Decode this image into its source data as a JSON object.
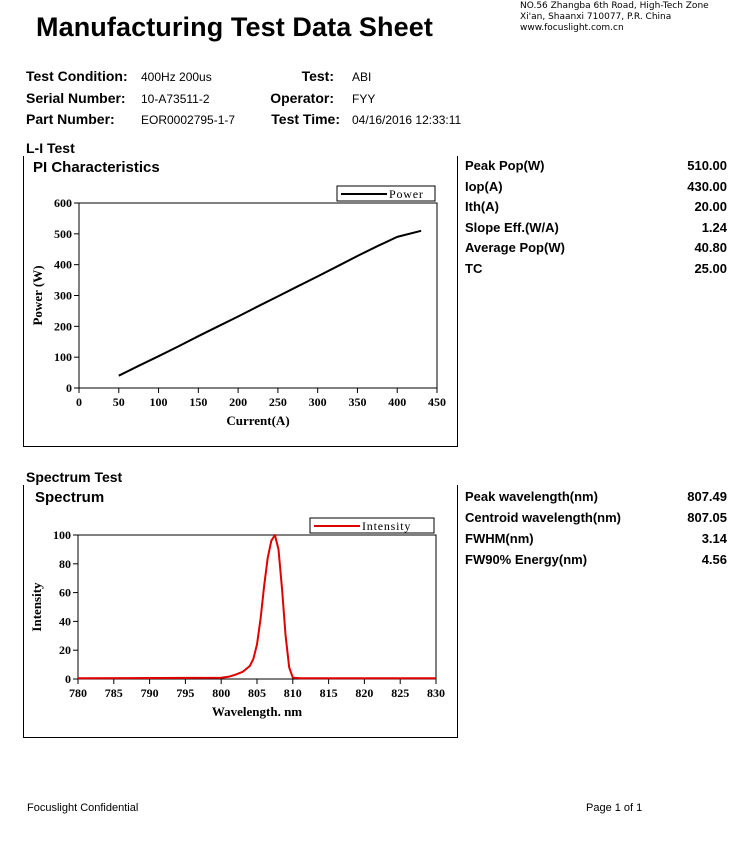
{
  "header": {
    "title": "Manufacturing Test Data Sheet",
    "address_lines": [
      "NO.56 Zhangba 6th Road, High-Tech Zone",
      "Xi'an, Shaanxi 710077,  P.R.  China",
      "www.focuslight.com.cn"
    ]
  },
  "info": {
    "test_condition_label": "Test Condition:",
    "test_condition": "400Hz 200us",
    "serial_label": "Serial Number:",
    "serial": "10-A73511-2",
    "part_label": "Part Number:",
    "part": "EOR0002795-1-7",
    "test_label": "Test:",
    "test": "ABI",
    "operator_label": "Operator:",
    "operator": "FYY",
    "time_label": "Test Time:",
    "time": "04/16/2016 12:33:11"
  },
  "li_section": {
    "heading": "L-I Test",
    "chart_title": "PI Characteristics",
    "results": [
      {
        "label": "Peak Pop(W)",
        "value": "510.00"
      },
      {
        "label": "Iop(A)",
        "value": "430.00"
      },
      {
        "label": "Ith(A)",
        "value": "20.00"
      },
      {
        "label": "Slope Eff.(W/A)",
        "value": "1.24"
      },
      {
        "label": "Average Pop(W)",
        "value": "40.80"
      },
      {
        "label": "TC",
        "value": "25.00"
      }
    ]
  },
  "spectrum_section": {
    "heading": "Spectrum Test",
    "chart_title": "Spectrum",
    "results": [
      {
        "label": "Peak wavelength(nm)",
        "value": "807.49"
      },
      {
        "label": "Centroid wavelength(nm)",
        "value": "807.05"
      },
      {
        "label": "FWHM(nm)",
        "value": "3.14"
      },
      {
        "label": "FW90% Energy(nm)",
        "value": "4.56"
      }
    ]
  },
  "chart_data": [
    {
      "type": "line",
      "title": "PI Characteristics",
      "xlabel": "Current(A)",
      "ylabel": "Power (W)",
      "xlim": [
        0,
        450
      ],
      "ylim": [
        0,
        600
      ],
      "xticks": [
        0,
        50,
        100,
        150,
        200,
        250,
        300,
        350,
        400,
        450
      ],
      "yticks": [
        0,
        100,
        200,
        300,
        400,
        500,
        600
      ],
      "legend_position": "top-right",
      "color": "#000000",
      "series": [
        {
          "name": "Power",
          "x": [
            50,
            75,
            100,
            125,
            150,
            175,
            200,
            225,
            250,
            275,
            300,
            325,
            350,
            375,
            400,
            430
          ],
          "y": [
            40,
            72,
            103,
            135,
            168,
            200,
            232,
            265,
            297,
            330,
            362,
            395,
            428,
            460,
            490,
            510
          ]
        }
      ]
    },
    {
      "type": "line",
      "title": "Spectrum",
      "xlabel": "Wavelength. nm",
      "ylabel": "Intensity",
      "xlim": [
        780,
        830
      ],
      "ylim": [
        0,
        100
      ],
      "xticks": [
        780,
        785,
        790,
        795,
        800,
        805,
        810,
        815,
        820,
        825,
        830
      ],
      "yticks": [
        0,
        20,
        40,
        60,
        80,
        100
      ],
      "legend_position": "top-right",
      "color": "#e00000",
      "series": [
        {
          "name": "Intensity",
          "x": [
            780,
            800,
            801,
            802,
            803,
            803.5,
            804,
            804.5,
            805,
            805.5,
            806,
            806.5,
            807,
            807.5,
            808,
            808.5,
            809,
            809.5,
            810,
            811,
            830
          ],
          "y": [
            0.5,
            0.8,
            1.5,
            3,
            5,
            7,
            9,
            14,
            24,
            42,
            65,
            84,
            96,
            100,
            90,
            62,
            30,
            8,
            1,
            0.5,
            0.5
          ]
        }
      ]
    }
  ],
  "footer": {
    "left": "Focuslight Confidential",
    "right": "Page 1 of 1"
  }
}
